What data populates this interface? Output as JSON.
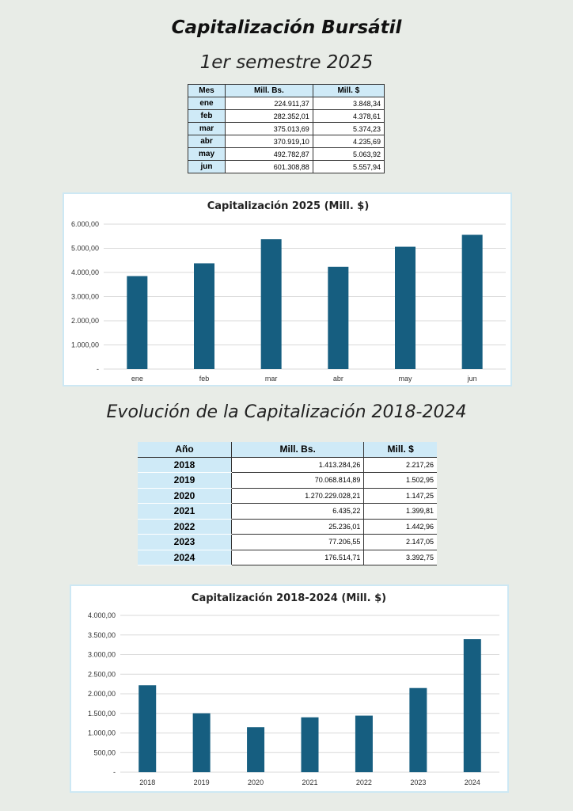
{
  "page": {
    "title": "Capitalización Bursátil",
    "subtitle": "1er semestre 2025",
    "evolution_title": "Evolución de la Capitalización 2018-2024"
  },
  "table_2025": {
    "headers": [
      "Mes",
      "Mill. Bs.",
      "Mill. $"
    ],
    "rows": [
      [
        "ene",
        "224.911,37",
        "3.848,34"
      ],
      [
        "feb",
        "282.352,01",
        "4.378,61"
      ],
      [
        "mar",
        "375.013,69",
        "5.374,23"
      ],
      [
        "abr",
        "370.919,10",
        "4.235,69"
      ],
      [
        "may",
        "492.782,87",
        "5.063,92"
      ],
      [
        "jun",
        "601.308,88",
        "5.557,94"
      ]
    ]
  },
  "table_evolution": {
    "headers": [
      "Año",
      "Mill. Bs.",
      "Mill. $"
    ],
    "rows": [
      [
        "2018",
        "1.413.284,26",
        "2.217,26"
      ],
      [
        "2019",
        "70.068.814,89",
        "1.502,95"
      ],
      [
        "2020",
        "1.270.229.028,21",
        "1.147,25"
      ],
      [
        "2021",
        "6.435,22",
        "1.399,81"
      ],
      [
        "2022",
        "25.236,01",
        "1.442,96"
      ],
      [
        "2023",
        "77.206,55",
        "2.147,05"
      ],
      [
        "2024",
        "176.514,71",
        "3.392,75"
      ]
    ]
  },
  "colors": {
    "bar": "#165e80",
    "header_bg": "#cfeaf7"
  },
  "chart_data": [
    {
      "type": "bar",
      "title": "Capitalización 2025 (Mill. $)",
      "categories": [
        "ene",
        "feb",
        "mar",
        "abr",
        "may",
        "jun"
      ],
      "values": [
        3848.34,
        4378.61,
        5374.23,
        4235.69,
        5063.92,
        5557.94
      ],
      "ylim": [
        0,
        6000
      ],
      "yticks": [
        0,
        1000,
        2000,
        3000,
        4000,
        5000,
        6000
      ],
      "ytick_labels": [
        "-",
        "1.000,00",
        "2.000,00",
        "3.000,00",
        "4.000,00",
        "5.000,00",
        "6.000,00"
      ],
      "xlabel": "",
      "ylabel": "",
      "grid": true
    },
    {
      "type": "bar",
      "title": "Capitalización 2018-2024 (Mill. $)",
      "categories": [
        "2018",
        "2019",
        "2020",
        "2021",
        "2022",
        "2023",
        "2024"
      ],
      "values": [
        2217.26,
        1502.95,
        1147.25,
        1399.81,
        1442.96,
        2147.05,
        3392.75
      ],
      "ylim": [
        0,
        4000
      ],
      "yticks": [
        0,
        500,
        1000,
        1500,
        2000,
        2500,
        3000,
        3500,
        4000
      ],
      "ytick_labels": [
        "-",
        "500,00",
        "1.000,00",
        "1.500,00",
        "2.000,00",
        "2.500,00",
        "3.000,00",
        "3.500,00",
        "4.000,00"
      ],
      "xlabel": "",
      "ylabel": "",
      "grid": true
    }
  ]
}
